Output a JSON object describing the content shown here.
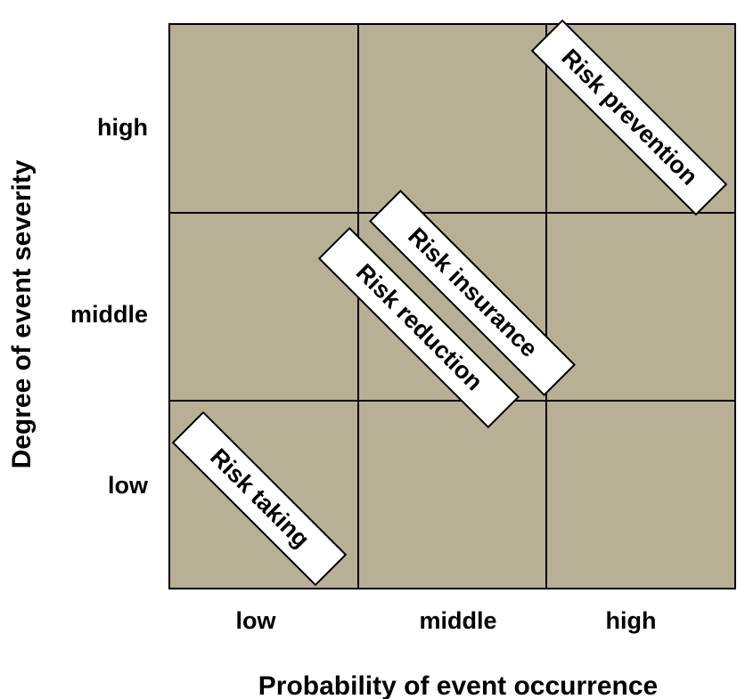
{
  "colors": {
    "cell_fill": "#b8b095",
    "grid_line": "#000000",
    "label_box_fill": "#ffffff",
    "label_box_border": "#000000"
  },
  "y_axis": {
    "title": "Degree  of event severity",
    "ticks": [
      "high",
      "middle",
      "low"
    ]
  },
  "x_axis": {
    "title": "Probability of event occurrence",
    "ticks": [
      "low",
      "middle",
      "high"
    ]
  },
  "strategies": [
    {
      "label": "Risk prevention",
      "severity": "high",
      "probability": "high"
    },
    {
      "label": "Risk insurance",
      "severity": "middle",
      "probability": "middle-high"
    },
    {
      "label": "Risk reduction",
      "severity": "middle-low",
      "probability": "low-middle"
    },
    {
      "label": "Risk taking",
      "severity": "low",
      "probability": "low"
    }
  ]
}
